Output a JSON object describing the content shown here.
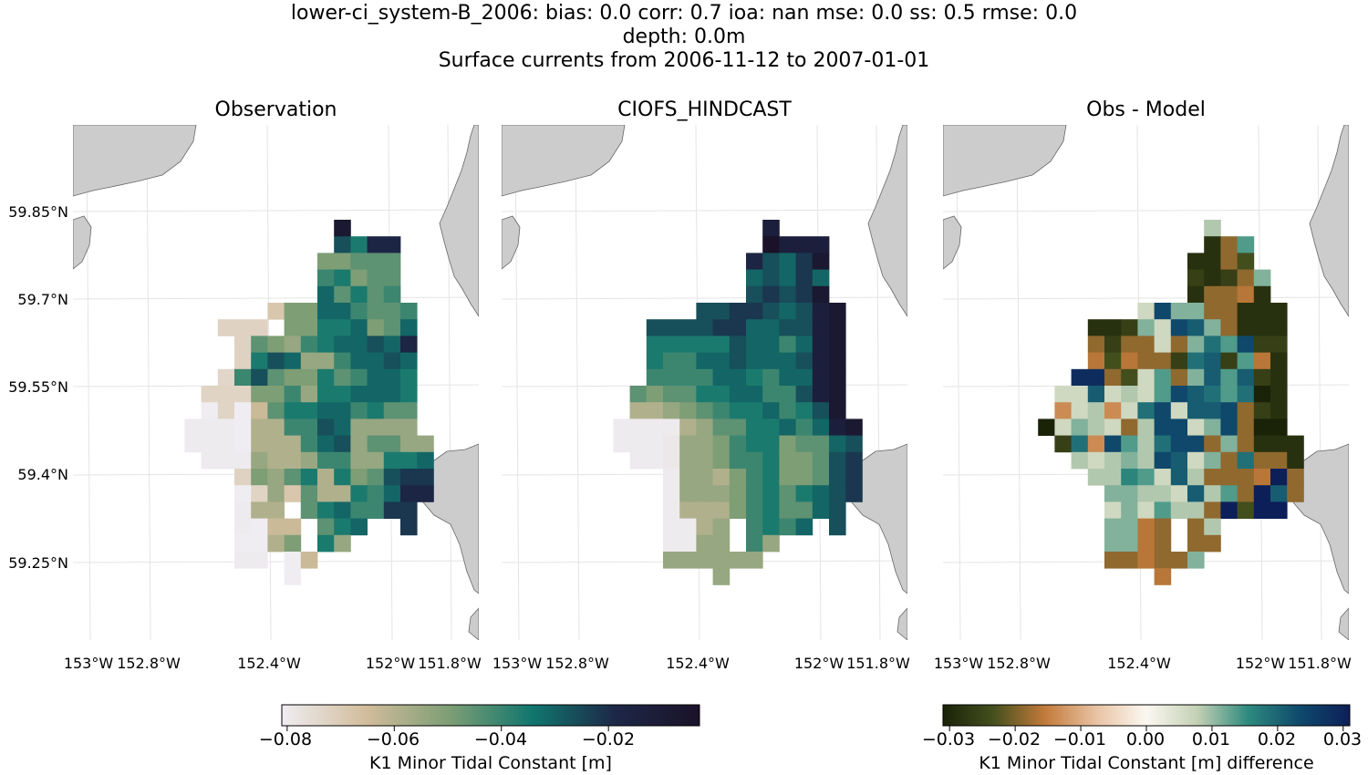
{
  "suptitle": {
    "line1": "lower-ci_system-B_2006: bias: 0.0  corr: 0.7  ioa: nan  mse: 0.0  ss: 0.5  rmse: 0.0",
    "line2": "depth: 0.0m",
    "line3": "Surface currents from 2006-11-12 to 2007-01-01"
  },
  "panels": [
    {
      "title": "Observation"
    },
    {
      "title": "CIOFS_HINDCAST"
    },
    {
      "title": "Obs - Model"
    }
  ],
  "axes": {
    "lat_ticks": [
      "59.85°N",
      "59.7°N",
      "59.55°N",
      "59.4°N",
      "59.25°N"
    ],
    "lon_ticks": [
      "153°W",
      "152.8°W",
      "152.4°W",
      "152°W",
      "151.8°W"
    ]
  },
  "colorbars": {
    "main": {
      "label": "K1 Minor Tidal Constant [m]",
      "ticks": [
        "−0.08",
        "−0.06",
        "−0.04",
        "−0.02"
      ],
      "range": [
        -0.081,
        -0.003
      ],
      "tick_values": [
        -0.08,
        -0.06,
        -0.04,
        -0.02
      ]
    },
    "diff": {
      "label": "K1 Minor Tidal Constant [m] difference",
      "ticks": [
        "−0.03",
        "−0.02",
        "−0.01",
        "0.00",
        "0.01",
        "0.02",
        "0.03"
      ],
      "range": [
        -0.031,
        0.031
      ],
      "tick_values": [
        -0.03,
        -0.02,
        -0.01,
        0,
        0.01,
        0.02,
        0.03
      ]
    }
  },
  "colors": {
    "land": "#cccccc",
    "coast": "#666666",
    "grid": "#e4e4e4",
    "main_colormap": [
      "#efedf2",
      "#d2bd9c",
      "#7e9e75",
      "#10766d",
      "#1d2747",
      "#1a1228"
    ],
    "diff_colormap": [
      "#1a2208",
      "#45501e",
      "#c27a3a",
      "#e8c2a2",
      "#fbf8f1",
      "#c4d0b4",
      "#2d8a7e",
      "#0f4a6c",
      "#0d1f58"
    ]
  },
  "chart_data": [
    {
      "type": "heatmap",
      "title": "Observation",
      "xlabel": "",
      "ylabel": "",
      "xlim": [
        "153°W",
        "151.8°W"
      ],
      "ylim": [
        "59.25°N",
        "59.85°N"
      ],
      "grid": true,
      "rows": [
        "...........O.....",
        "...........KIMM..",
        "..........FFGGG..",
        "..........HIFGG..",
        "..........JGIGH..",
        ".......BFFJJHGGH.",
        "....ooo.FFIIJFGJ.",
        ".....oGFEHIJJKJM.",
        ".....oIKJEEHJJKJ.",
        "....mHKGFFIGHJJI.",
        "...nnnFFHEIIJJJI.",
        "...anaCGIIJJHIGG.",
        "..bbbaDDHHKJEEEE.",
        "..bbbaDDDHJKEGGEE",
        "...bbbEDDEHHEEIIJ",
        ".....oFEGIDIFGKLL",
        ".....anEBGDDIHJMM",
        ".....bDD.GIJHHLL.",
        ".....baCC.GIJ..L.",
        ".....aaDF.IE.....",
        ".....bb.aC.......",
        "........a........"
      ]
    },
    {
      "type": "heatmap",
      "title": "CIOFS_HINDCAST",
      "xlabel": "",
      "ylabel": "",
      "xlim": [
        "153°W",
        "151.8°W"
      ],
      "ylim": [
        "59.25°N",
        "59.85°N"
      ],
      "grid": true,
      "rows": [
        "...........N.....",
        "...........PNNN..",
        "..........MKJLO..",
        "..........JKJLJ..",
        "..........KLKLO..",
        ".......KKLLKJKNO.",
        "....KKKKLLJJKKNO.",
        "....IIIIIKJJHJNO.",
        "....IHHJJKJJJKNO.",
        "....HHHHJJIHJJNO.",
        "...GFGGIIJJHHKNO.",
        "...DDEFGHIIJHIKO.",
        "..bbbbDEGGIIJHJNO",
        "..bbbdEEFHIIFGGJK",
        "...bbdEEFHHIFFGKL",
        ".....bEEDFHIFFGKL",
        ".....bEEEFHIGIJKL",
        ".....bDDDFHIGGJK.",
        ".....bbDE.HIHJ.K.",
        ".....bbEE.HE.....",
        ".....EEEEEE......",
        "........E........"
      ]
    },
    {
      "type": "heatmap",
      "title": "Obs - Model",
      "xlabel": "",
      "ylabel": "",
      "xlim": [
        "153°W",
        "151.8°W"
      ],
      "ylim": [
        "59.25°N",
        "59.85°N"
      ],
      "grid": true,
      "rows": [
        "...........q.....",
        "...........bfs...",
        "..........bbfd...",
        "..........cbcfr..",
        "..........bffgb..",
        ".......pwrrffbbb.",
        "....bbcrpwvrfbbb.",
        "....fcffpfruswcc.",
        "....gdgffcuvcsgb.",
        "...yyfdpsfrvsvcb.",
        "..ppvpqpswvusuab.",
        "..hpqhpuwpvvwfcb.",
        ".aprqpfqwwprwfaa.",
        "..cuhwsquwwfrfbbb",
        "...qpqrqwvprfuffb",
        "....qqtspvqfffgzf",
        ".....rrqqpvqsfzvf",
        ".....prpsqqfzdzz.",
        ".....rrgf.fq.....",
        ".....rrgf.ff.....",
        ".....ffgffr......",
        "........g........"
      ]
    }
  ]
}
